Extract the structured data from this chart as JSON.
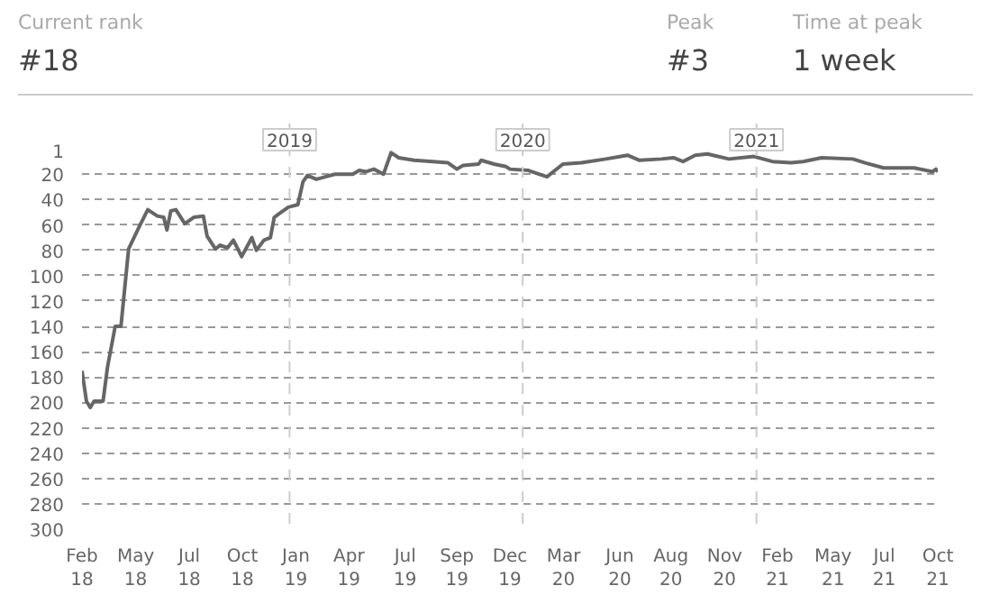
{
  "chart_data": {
    "type": "line",
    "annotations": [
      "Current rank",
      "#18",
      "Peak",
      "#3",
      "Time at peak",
      "1 week"
    ],
    "x": [
      "2018-02-10",
      "2018-02-17",
      "2018-02-23",
      "2018-03-01",
      "2018-03-15",
      "2018-03-22",
      "2018-04-03",
      "2018-04-12",
      "2018-04-24",
      "2018-05-11",
      "2018-05-24",
      "2018-06-08",
      "2018-06-18",
      "2018-06-23",
      "2018-06-29",
      "2018-07-07",
      "2018-07-21",
      "2018-08-04",
      "2018-08-19",
      "2018-08-25",
      "2018-09-07",
      "2018-09-14",
      "2018-09-26",
      "2018-10-05",
      "2018-10-18",
      "2018-11-03",
      "2018-11-10",
      "2018-11-22",
      "2018-12-02",
      "2018-12-08",
      "2018-12-16",
      "2018-12-30",
      "2019-01-14",
      "2019-01-22",
      "2019-01-29",
      "2019-02-12",
      "2019-02-26",
      "2019-03-13",
      "2019-04-10",
      "2019-04-20",
      "2019-05-01",
      "2019-05-13",
      "2019-05-28",
      "2019-06-09",
      "2019-06-21",
      "2019-07-15",
      "2019-08-13",
      "2019-09-06",
      "2019-09-20",
      "2019-09-30",
      "2019-10-24",
      "2019-10-28",
      "2019-11-17",
      "2019-12-06",
      "2019-12-12",
      "2020-01-10",
      "2020-02-08",
      "2020-03-04",
      "2020-04-02",
      "2020-05-10",
      "2020-06-13",
      "2020-07-02",
      "2020-08-05",
      "2020-08-24",
      "2020-09-08",
      "2020-09-27",
      "2020-10-16",
      "2020-11-19",
      "2020-12-28",
      "2021-01-26",
      "2021-02-24",
      "2021-03-15",
      "2021-04-13",
      "2021-06-01",
      "2021-06-20",
      "2021-07-19",
      "2021-09-05",
      "2021-10-04",
      "2021-10-09",
      "2021-10-12"
    ],
    "series": [
      {
        "color": "#666666",
        "values": [
          175,
          199,
          204,
          199,
          199,
          172,
          140,
          140,
          79,
          61,
          48,
          53,
          54,
          64,
          49,
          48,
          59,
          54,
          53,
          69,
          79,
          76,
          78,
          72,
          85,
          70,
          80,
          72,
          70,
          54,
          51,
          46,
          44,
          26,
          21,
          24,
          22,
          20,
          20,
          17,
          18,
          16,
          20,
          3,
          7,
          9,
          10,
          11,
          16,
          13,
          12,
          9,
          12,
          14,
          16,
          17,
          22,
          12,
          11,
          8,
          5,
          9,
          8,
          7,
          10,
          5,
          4,
          8,
          6,
          10,
          11,
          10,
          7,
          8,
          11,
          15,
          15,
          18,
          16,
          18
        ]
      }
    ],
    "ylim": [
      300,
      -20
    ],
    "yticks": [
      1,
      20,
      40,
      60,
      80,
      100,
      120,
      140,
      160,
      180,
      200,
      220,
      240,
      260,
      280,
      300
    ],
    "xlim": [
      "2018-02-10",
      "2021-10-12"
    ],
    "xticks": [
      {
        "value": "2018-02-10",
        "label": "Feb\n18"
      },
      {
        "value": "2018-05-05",
        "label": "May\n18"
      },
      {
        "value": "2018-07-28",
        "label": "Jul\n18"
      },
      {
        "value": "2018-10-19",
        "label": "Oct\n18"
      },
      {
        "value": "2019-01-11",
        "label": "Jan\n19"
      },
      {
        "value": "2019-04-04",
        "label": "Apr\n19"
      },
      {
        "value": "2019-07-01",
        "label": "Jul\n19"
      },
      {
        "value": "2019-09-20",
        "label": "Sep\n19"
      },
      {
        "value": "2019-12-12",
        "label": "Dec\n19"
      },
      {
        "value": "2020-03-05",
        "label": "Mar\n20"
      },
      {
        "value": "2020-06-01",
        "label": "Jun\n20"
      },
      {
        "value": "2020-08-20",
        "label": "Aug\n20"
      },
      {
        "value": "2020-11-12",
        "label": "Nov\n20"
      },
      {
        "value": "2021-02-03",
        "label": "Feb\n21"
      },
      {
        "value": "2021-05-01",
        "label": "May\n21"
      },
      {
        "value": "2021-07-20",
        "label": "Jul\n21"
      },
      {
        "value": "2021-10-12",
        "label": "Oct\n21"
      }
    ],
    "ref_lines": [
      {
        "axis": "x",
        "value": "2019-01-01",
        "label": "2019",
        "color": "#cccccc",
        "line_style": "dashed"
      },
      {
        "axis": "x",
        "value": "2020-01-01",
        "label": "2020",
        "color": "#cccccc",
        "line_style": "dashed"
      },
      {
        "axis": "x",
        "value": "2021-01-01",
        "label": "2021",
        "color": "#cccccc",
        "line_style": "dashed"
      }
    ],
    "grid": "y",
    "marker": "none",
    "line_style": "solid"
  }
}
